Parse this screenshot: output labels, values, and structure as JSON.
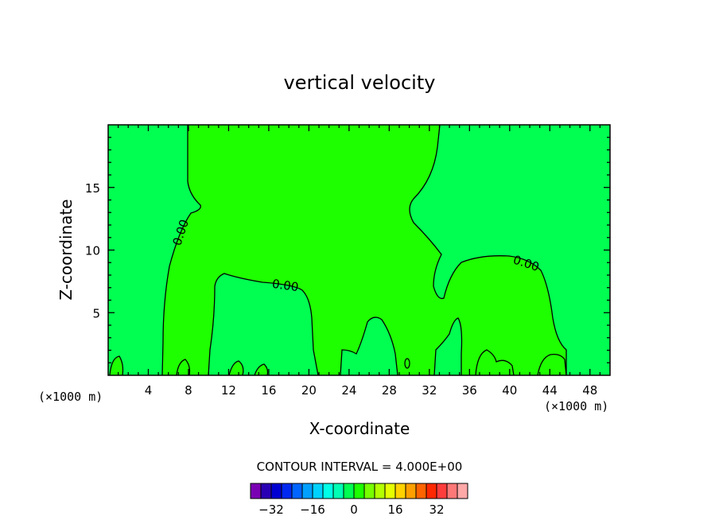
{
  "chart_data": {
    "type": "heatmap",
    "title": "vertical velocity",
    "xlabel": "X-coordinate",
    "ylabel": "Z-coordinate",
    "x_unit": "(×1000 m)",
    "xlim": [
      0,
      50
    ],
    "ylim": [
      0,
      20
    ],
    "x_ticks": [
      4,
      8,
      12,
      16,
      20,
      24,
      28,
      32,
      36,
      40,
      44,
      48
    ],
    "x_tick_labels": [
      "4",
      "8",
      "12",
      "16",
      "20",
      "24",
      "28",
      "32",
      "36",
      "40",
      "44",
      "48"
    ],
    "y_ticks": [
      5,
      10,
      15
    ],
    "y_tick_labels": [
      "5",
      "10",
      "15"
    ],
    "contour_interval_text": "CONTOUR INTERVAL = 4.000E+00",
    "contour_labels": [
      "0.00",
      "0.00",
      "0.00"
    ],
    "colorbar": {
      "levels": [
        -36,
        -32,
        -28,
        -24,
        -20,
        -16,
        -12,
        -8,
        -4,
        0,
        4,
        8,
        12,
        16,
        20,
        24,
        28,
        32,
        36
      ],
      "colors": [
        "#7a00b4",
        "#2a00b4",
        "#0000d2",
        "#0028f0",
        "#0064ff",
        "#00a0ff",
        "#00d2ff",
        "#00ffe6",
        "#00ffb4",
        "#00ff50",
        "#1eff00",
        "#78ff00",
        "#b4ff00",
        "#e6ff00",
        "#ffd200",
        "#ffa000",
        "#ff6400",
        "#ff2800",
        "#ff3c3c",
        "#ff7878",
        "#ffa8a8"
      ],
      "tick_labels": [
        "-32",
        "-16",
        "0",
        "16",
        "32"
      ],
      "tick_values": [
        -32,
        -16,
        0,
        16,
        32
      ]
    },
    "field_colors": {
      "positive": "#1eff00",
      "negative": "#00ff50"
    }
  }
}
